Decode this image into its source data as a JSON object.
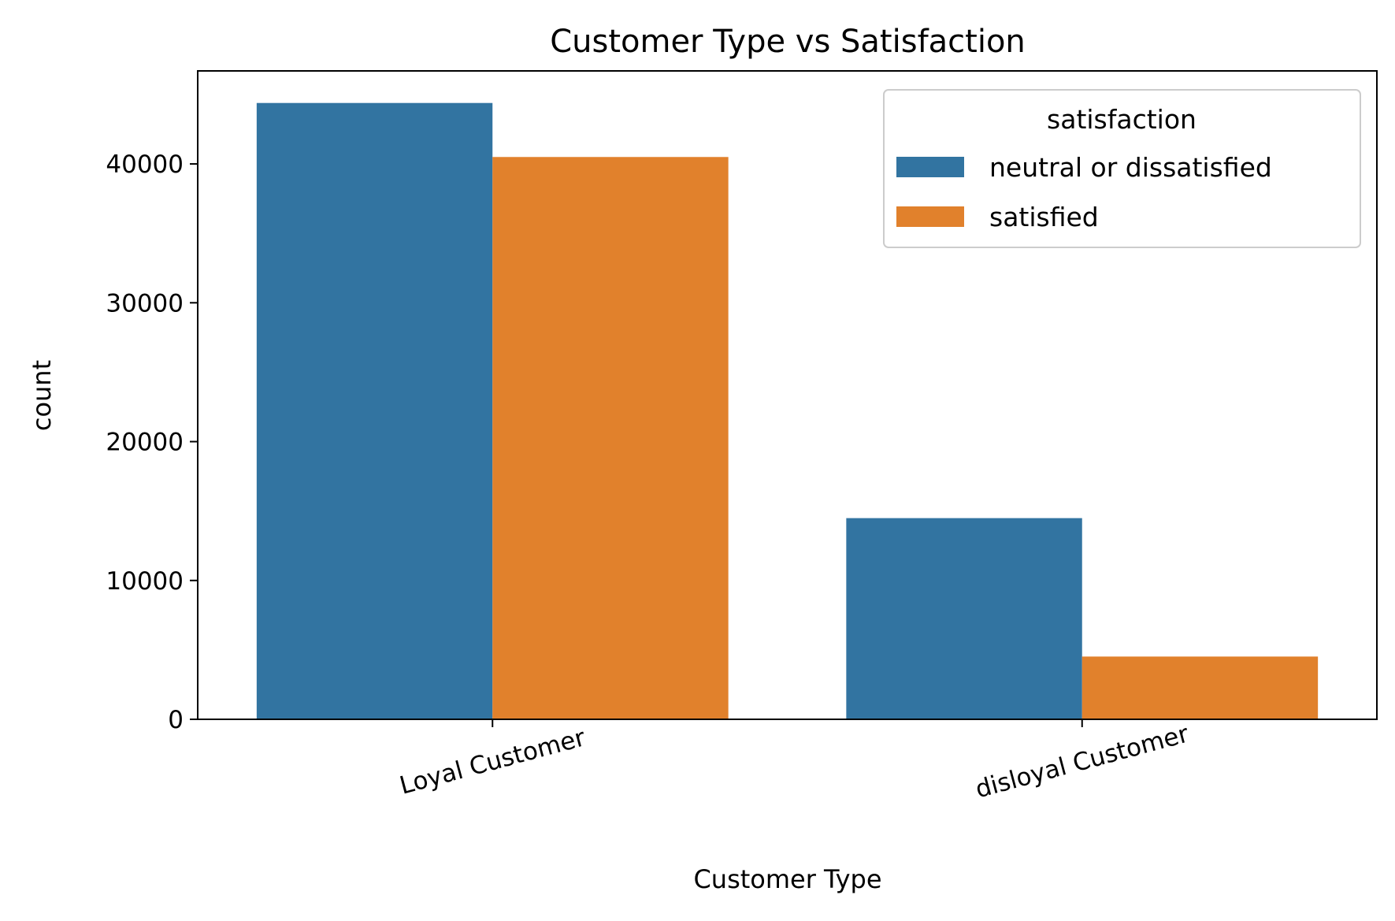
{
  "chart_data": {
    "type": "bar",
    "title": "Customer Type vs Satisfaction",
    "xlabel": "Customer Type",
    "ylabel": "count",
    "categories": [
      "Loyal Customer",
      "disloyal Customer"
    ],
    "series": [
      {
        "name": "neutral or dissatisfied",
        "color": "#3274a1",
        "values": [
          44390,
          14490
        ]
      },
      {
        "name": "satisfied",
        "color": "#e1812c",
        "values": [
          40500,
          4520
        ]
      }
    ],
    "ylim": [
      0,
      46700
    ],
    "yticks": [
      0,
      10000,
      20000,
      30000,
      40000
    ],
    "ytick_labels": [
      "0",
      "10000",
      "20000",
      "30000",
      "40000"
    ],
    "grid": false,
    "legend": {
      "title": "satisfaction",
      "placement": "top-right"
    }
  }
}
